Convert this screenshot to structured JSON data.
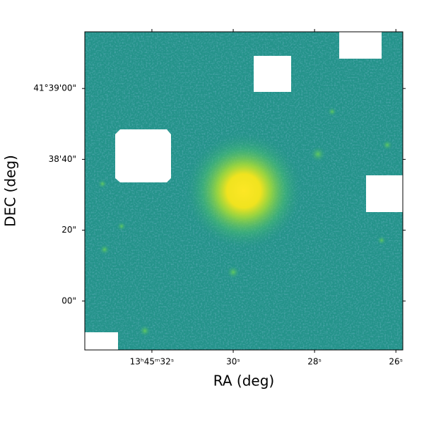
{
  "chart_data": {
    "type": "image",
    "xlabel": "RA (deg)",
    "ylabel": "DEC (deg)",
    "xlim": [
      33.65,
      25.83
    ],
    "xticks": [
      {
        "value": 32,
        "label": "13ʰ45ᵐ32ˢ"
      },
      {
        "value": 30,
        "label": "30ˢ"
      },
      {
        "value": 28,
        "label": "28ˢ"
      },
      {
        "value": 26,
        "label": "26ˢ"
      }
    ],
    "ylim": [
      -13.8,
      76
    ],
    "yticks": [
      {
        "value": 0,
        "label": "00\""
      },
      {
        "value": 20,
        "label": "20\""
      },
      {
        "value": 40,
        "label": "38'40\""
      },
      {
        "value": 60,
        "label": "41°39'00\""
      }
    ],
    "colormap": "viridis"
  }
}
